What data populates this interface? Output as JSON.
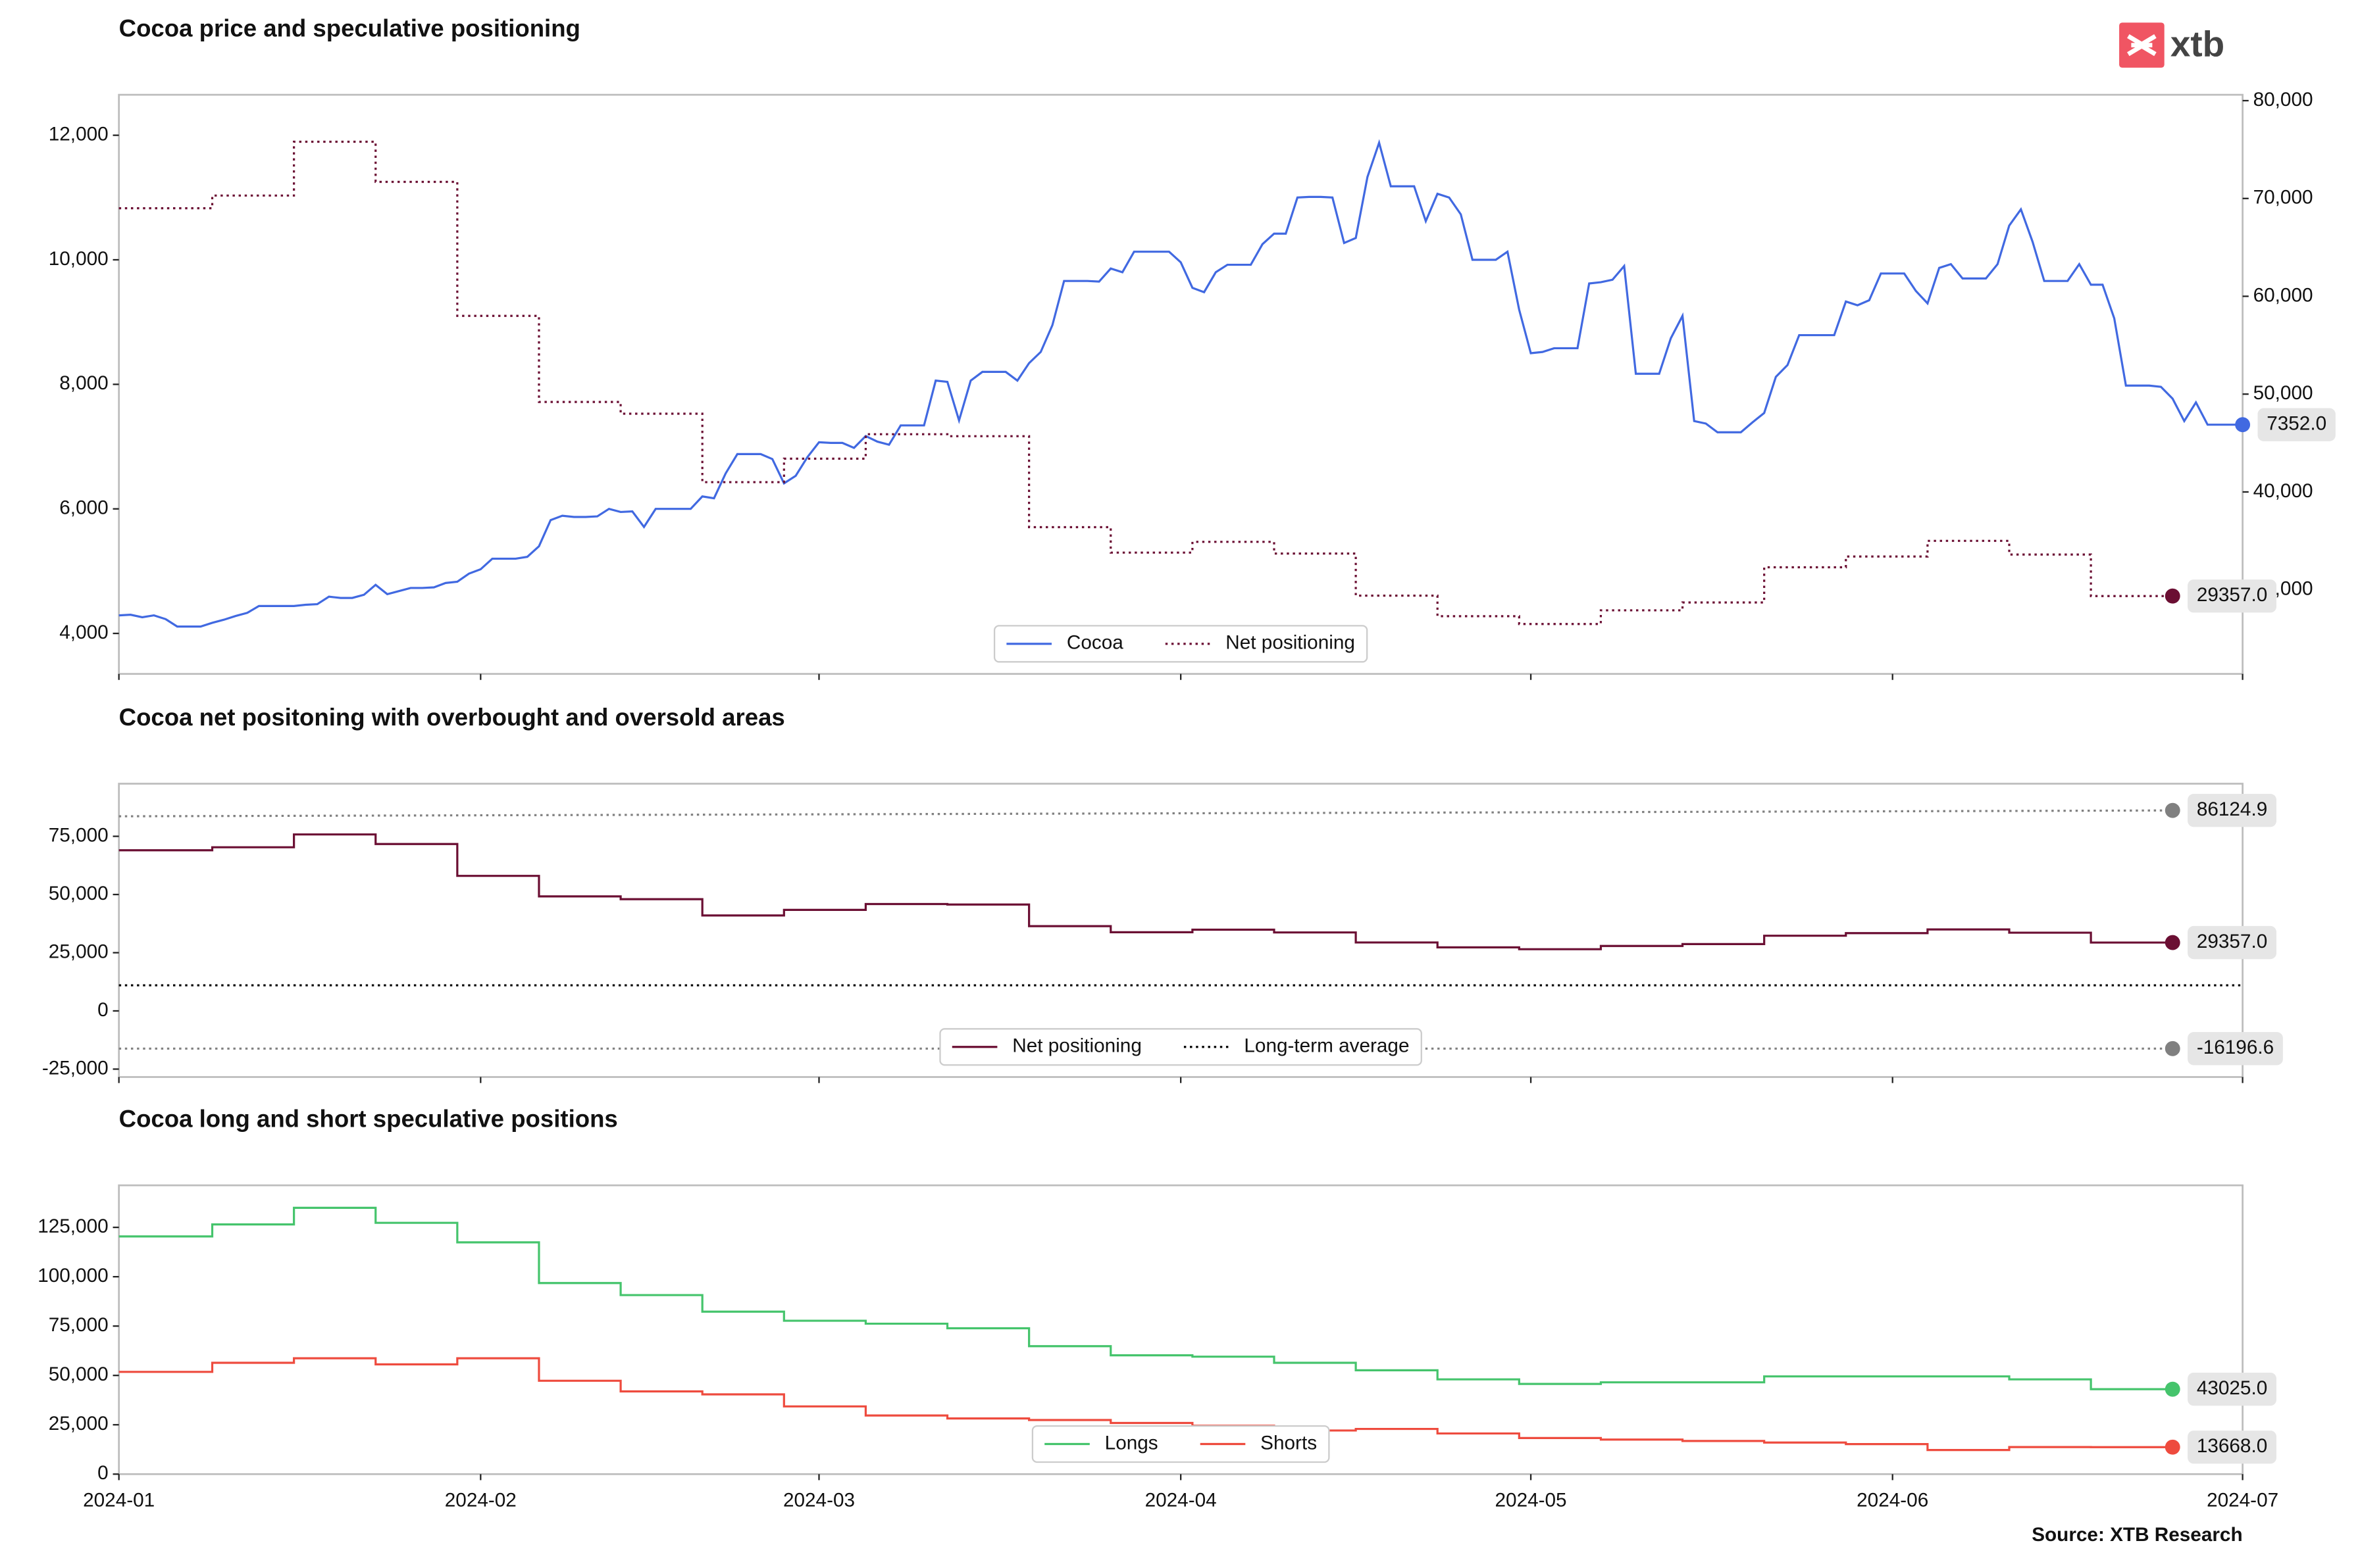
{
  "logo": "xtb",
  "source": "Source: XTB Research",
  "chart_data": [
    {
      "type": "line",
      "title": "Cocoa price and speculative positioning",
      "xlim": [
        0,
        182
      ],
      "xticks": [
        0,
        31,
        60,
        91,
        121,
        152,
        182
      ],
      "xtick_labels": false,
      "ylim": [
        3350,
        12650
      ],
      "yticks": [
        {
          "value": 4000,
          "label": "4,000"
        },
        {
          "value": 6000,
          "label": "6,000"
        },
        {
          "value": 8000,
          "label": "8,000"
        },
        {
          "value": 10000,
          "label": "10,000"
        },
        {
          "value": 12000,
          "label": "12,000"
        }
      ],
      "y2lim": [
        21400,
        80600
      ],
      "y2ticks": [
        {
          "value": 30000,
          "label": "30,000"
        },
        {
          "value": 40000,
          "label": "40,000"
        },
        {
          "value": 50000,
          "label": "50,000"
        },
        {
          "value": 60000,
          "label": "60,000"
        },
        {
          "value": 70000,
          "label": "70,000"
        },
        {
          "value": 80000,
          "label": "80,000"
        }
      ],
      "legend": "lower center",
      "series": [
        {
          "name": "Cocoa",
          "color": "#4169e1",
          "style": "solid",
          "x": [
            0,
            1,
            2,
            3,
            4,
            5,
            6,
            7,
            8,
            9,
            10,
            11,
            12,
            13,
            14,
            15,
            16,
            17,
            18,
            19,
            20,
            21,
            22,
            23,
            24,
            25,
            26,
            27,
            28,
            29,
            30,
            31,
            32,
            33,
            34,
            35,
            36,
            37,
            38,
            39,
            40,
            41,
            42,
            43,
            44,
            45,
            46,
            47,
            48,
            49,
            50,
            51,
            52,
            53,
            54,
            55,
            56,
            57,
            58,
            59,
            60,
            61,
            62,
            63,
            64,
            65,
            66,
            67,
            68,
            69,
            70,
            71,
            72,
            73,
            74,
            75,
            76,
            77,
            78,
            79,
            80,
            81,
            82,
            83,
            84,
            85,
            86,
            87,
            88,
            89,
            90,
            91,
            92,
            93,
            94,
            95,
            96,
            97,
            98,
            99,
            100,
            101,
            102,
            103,
            104,
            105,
            106,
            107,
            108,
            109,
            110,
            111,
            112,
            113,
            114,
            115,
            116,
            117,
            118,
            119,
            120,
            121,
            122,
            123,
            124,
            125,
            126,
            127,
            128,
            129,
            130,
            131,
            132,
            133,
            134,
            135,
            136,
            137,
            138,
            139,
            140,
            141,
            142,
            143,
            144,
            145,
            146,
            147,
            148,
            149,
            150,
            151,
            152,
            153,
            154,
            155,
            156,
            157,
            158,
            159,
            160,
            161,
            162,
            163,
            164,
            165,
            166,
            167,
            168,
            169,
            170,
            171,
            172,
            173,
            174,
            175,
            176,
            177,
            178,
            179,
            180,
            181,
            182
          ],
          "values": [
            4290,
            4300,
            4260,
            4290,
            4230,
            4110,
            4110,
            4110,
            4170,
            4220,
            4280,
            4330,
            4440,
            4440,
            4440,
            4440,
            4460,
            4470,
            4590,
            4570,
            4570,
            4620,
            4780,
            4630,
            4680,
            4730,
            4730,
            4740,
            4810,
            4830,
            4960,
            5030,
            5200,
            5200,
            5200,
            5230,
            5400,
            5820,
            5890,
            5870,
            5870,
            5880,
            6000,
            5950,
            5960,
            5710,
            6000,
            6000,
            6000,
            6000,
            6200,
            6170,
            6570,
            6880,
            6880,
            6880,
            6800,
            6410,
            6530,
            6830,
            7070,
            7060,
            7060,
            6980,
            7170,
            7080,
            7030,
            7340,
            7340,
            7340,
            8060,
            8040,
            7420,
            8060,
            8200,
            8200,
            8200,
            8060,
            8340,
            8520,
            8950,
            9660,
            9660,
            9660,
            9650,
            9860,
            9800,
            10130,
            10130,
            10130,
            10130,
            9960,
            9550,
            9480,
            9800,
            9920,
            9920,
            9920,
            10250,
            10420,
            10420,
            11000,
            11010,
            11010,
            11000,
            10270,
            10350,
            11330,
            11880,
            11180,
            11180,
            11180,
            10620,
            11060,
            11000,
            10730,
            10000,
            10000,
            10000,
            10130,
            9200,
            8500,
            8520,
            8580,
            8580,
            8580,
            9620,
            9640,
            9680,
            9900,
            8170,
            8170,
            8170,
            8740,
            9100,
            7410,
            7370,
            7230,
            7230,
            7230,
            7390,
            7540,
            8120,
            8310,
            8790,
            8790,
            8790,
            8790,
            9330,
            9270,
            9350,
            9780,
            9780,
            9780,
            9500,
            9300,
            9870,
            9930,
            9700,
            9700,
            9700,
            9930,
            10550,
            10810,
            10290,
            9660,
            9660,
            9660,
            9930,
            9600,
            9600,
            9060,
            7980,
            7980,
            7980,
            7960,
            7770,
            7410,
            7710,
            7352,
            7352,
            7352,
            7352
          ],
          "end_label": "7352.0"
        },
        {
          "name": "Net positioning",
          "color": "#6b0f33",
          "style": "dotted",
          "step": true,
          "axis": "y2",
          "x": [
            0,
            8,
            15,
            22,
            29,
            36,
            43,
            50,
            57,
            64,
            71,
            78,
            85,
            92,
            99,
            106,
            113,
            120,
            127,
            134,
            141,
            148,
            155,
            162,
            169,
            176
          ],
          "values": [
            69000,
            70300,
            75800,
            71700,
            58000,
            49200,
            48000,
            41000,
            43400,
            45900,
            45700,
            36400,
            33800,
            34900,
            33700,
            29400,
            27300,
            26500,
            27900,
            28700,
            32300,
            33400,
            35000,
            33600,
            29357,
            29357
          ],
          "end_label": "29357.0"
        }
      ]
    },
    {
      "type": "line",
      "title": "Cocoa net positoning with overbought and oversold areas",
      "xlim": [
        0,
        182
      ],
      "xticks": [
        0,
        31,
        60,
        91,
        121,
        152,
        182
      ],
      "xtick_labels": false,
      "x": [
        0,
        8,
        15,
        22,
        29,
        36,
        43,
        50,
        57,
        64,
        71,
        78,
        85,
        92,
        99,
        106,
        113,
        120,
        127,
        134,
        141,
        148,
        155,
        162,
        169,
        176
      ],
      "ylim": [
        -28400,
        97600
      ],
      "yticks": [
        {
          "value": -25000,
          "label": "-25,000"
        },
        0,
        {
          "value": 25000,
          "label": "25,000"
        },
        {
          "value": 50000,
          "label": "50,000"
        },
        {
          "value": 75000,
          "label": "75,000"
        }
      ],
      "legend": "lower center",
      "series": [
        {
          "name": "Net positioning",
          "color": "#6b0f33",
          "style": "solid",
          "step": true,
          "values": [
            69000,
            70300,
            75800,
            71700,
            58000,
            49200,
            48000,
            41000,
            43400,
            45900,
            45700,
            36400,
            33800,
            34900,
            33700,
            29400,
            27300,
            26500,
            27900,
            28700,
            32300,
            33400,
            35000,
            33600,
            29357,
            29357
          ],
          "end_label": "29357.0"
        },
        {
          "name": "Long-term average",
          "color": "#000000",
          "style": "dotted",
          "x": [
            0,
            182
          ],
          "values": [
            11000,
            11000
          ]
        },
        {
          "color": "#808080",
          "style": "dotted",
          "values": [
            83600,
            83700,
            83800,
            83900,
            84000,
            84100,
            84200,
            84300,
            84400,
            84500,
            84600,
            84700,
            84800,
            84900,
            85000,
            85100,
            85200,
            85300,
            85400,
            85500,
            85600,
            85700,
            85800,
            85900,
            86000,
            86124.9
          ],
          "end_label": "86124.9"
        },
        {
          "color": "#808080",
          "style": "dotted",
          "values": [
            -16196.6,
            -16196.6,
            -16196.6,
            -16196.6,
            -16196.6,
            -16196.6,
            -16196.6,
            -16196.6,
            -16196.6,
            -16196.6,
            -16196.6,
            -16196.6,
            -16196.6,
            -16196.6,
            -16196.6,
            -16196.6,
            -16196.6,
            -16196.6,
            -16196.6,
            -16196.6,
            -16196.6,
            -16196.6,
            -16196.6,
            -16196.6,
            -16196.6,
            -16196.6
          ],
          "end_label": "-16196.6"
        }
      ]
    },
    {
      "type": "line",
      "title": "Cocoa long and short speculative positions",
      "xlim": [
        0,
        182
      ],
      "xticks": [
        {
          "value": 0,
          "label": "2024-01"
        },
        {
          "value": 31,
          "label": "2024-02"
        },
        {
          "value": 60,
          "label": "2024-03"
        },
        {
          "value": 91,
          "label": "2024-04"
        },
        {
          "value": 121,
          "label": "2024-05"
        },
        {
          "value": 152,
          "label": "2024-06"
        },
        {
          "value": 182,
          "label": "2024-07"
        }
      ],
      "x": [
        0,
        8,
        15,
        22,
        29,
        36,
        43,
        50,
        57,
        64,
        71,
        78,
        85,
        92,
        99,
        106,
        113,
        120,
        127,
        134,
        141,
        148,
        155,
        162,
        169,
        176
      ],
      "ylim": [
        0,
        146300
      ],
      "yticks": [
        0,
        {
          "value": 25000,
          "label": "25,000"
        },
        {
          "value": 50000,
          "label": "50,000"
        },
        {
          "value": 75000,
          "label": "75,000"
        },
        {
          "value": 100000,
          "label": "100,000"
        },
        {
          "value": 125000,
          "label": "125,000"
        }
      ],
      "legend": "lower center",
      "series": [
        {
          "name": "Longs",
          "color": "#45c46c",
          "style": "solid",
          "step": true,
          "values": [
            120400,
            126500,
            134900,
            127300,
            117400,
            96800,
            90700,
            82300,
            77700,
            76200,
            73900,
            64800,
            60200,
            59500,
            56400,
            52600,
            48000,
            45700,
            46500,
            46500,
            49500,
            49500,
            49500,
            48000,
            43025,
            43025
          ],
          "end_label": "43025.0"
        },
        {
          "name": "Shorts",
          "color": "#ee4b3e",
          "style": "solid",
          "step": true,
          "values": [
            51800,
            56400,
            58700,
            55600,
            58700,
            47300,
            41900,
            40400,
            34300,
            29700,
            28200,
            27400,
            25900,
            24500,
            22100,
            22900,
            20600,
            18300,
            17500,
            16800,
            16000,
            15200,
            12200,
            13700,
            13668,
            13668
          ],
          "end_label": "13668.0"
        }
      ]
    }
  ]
}
